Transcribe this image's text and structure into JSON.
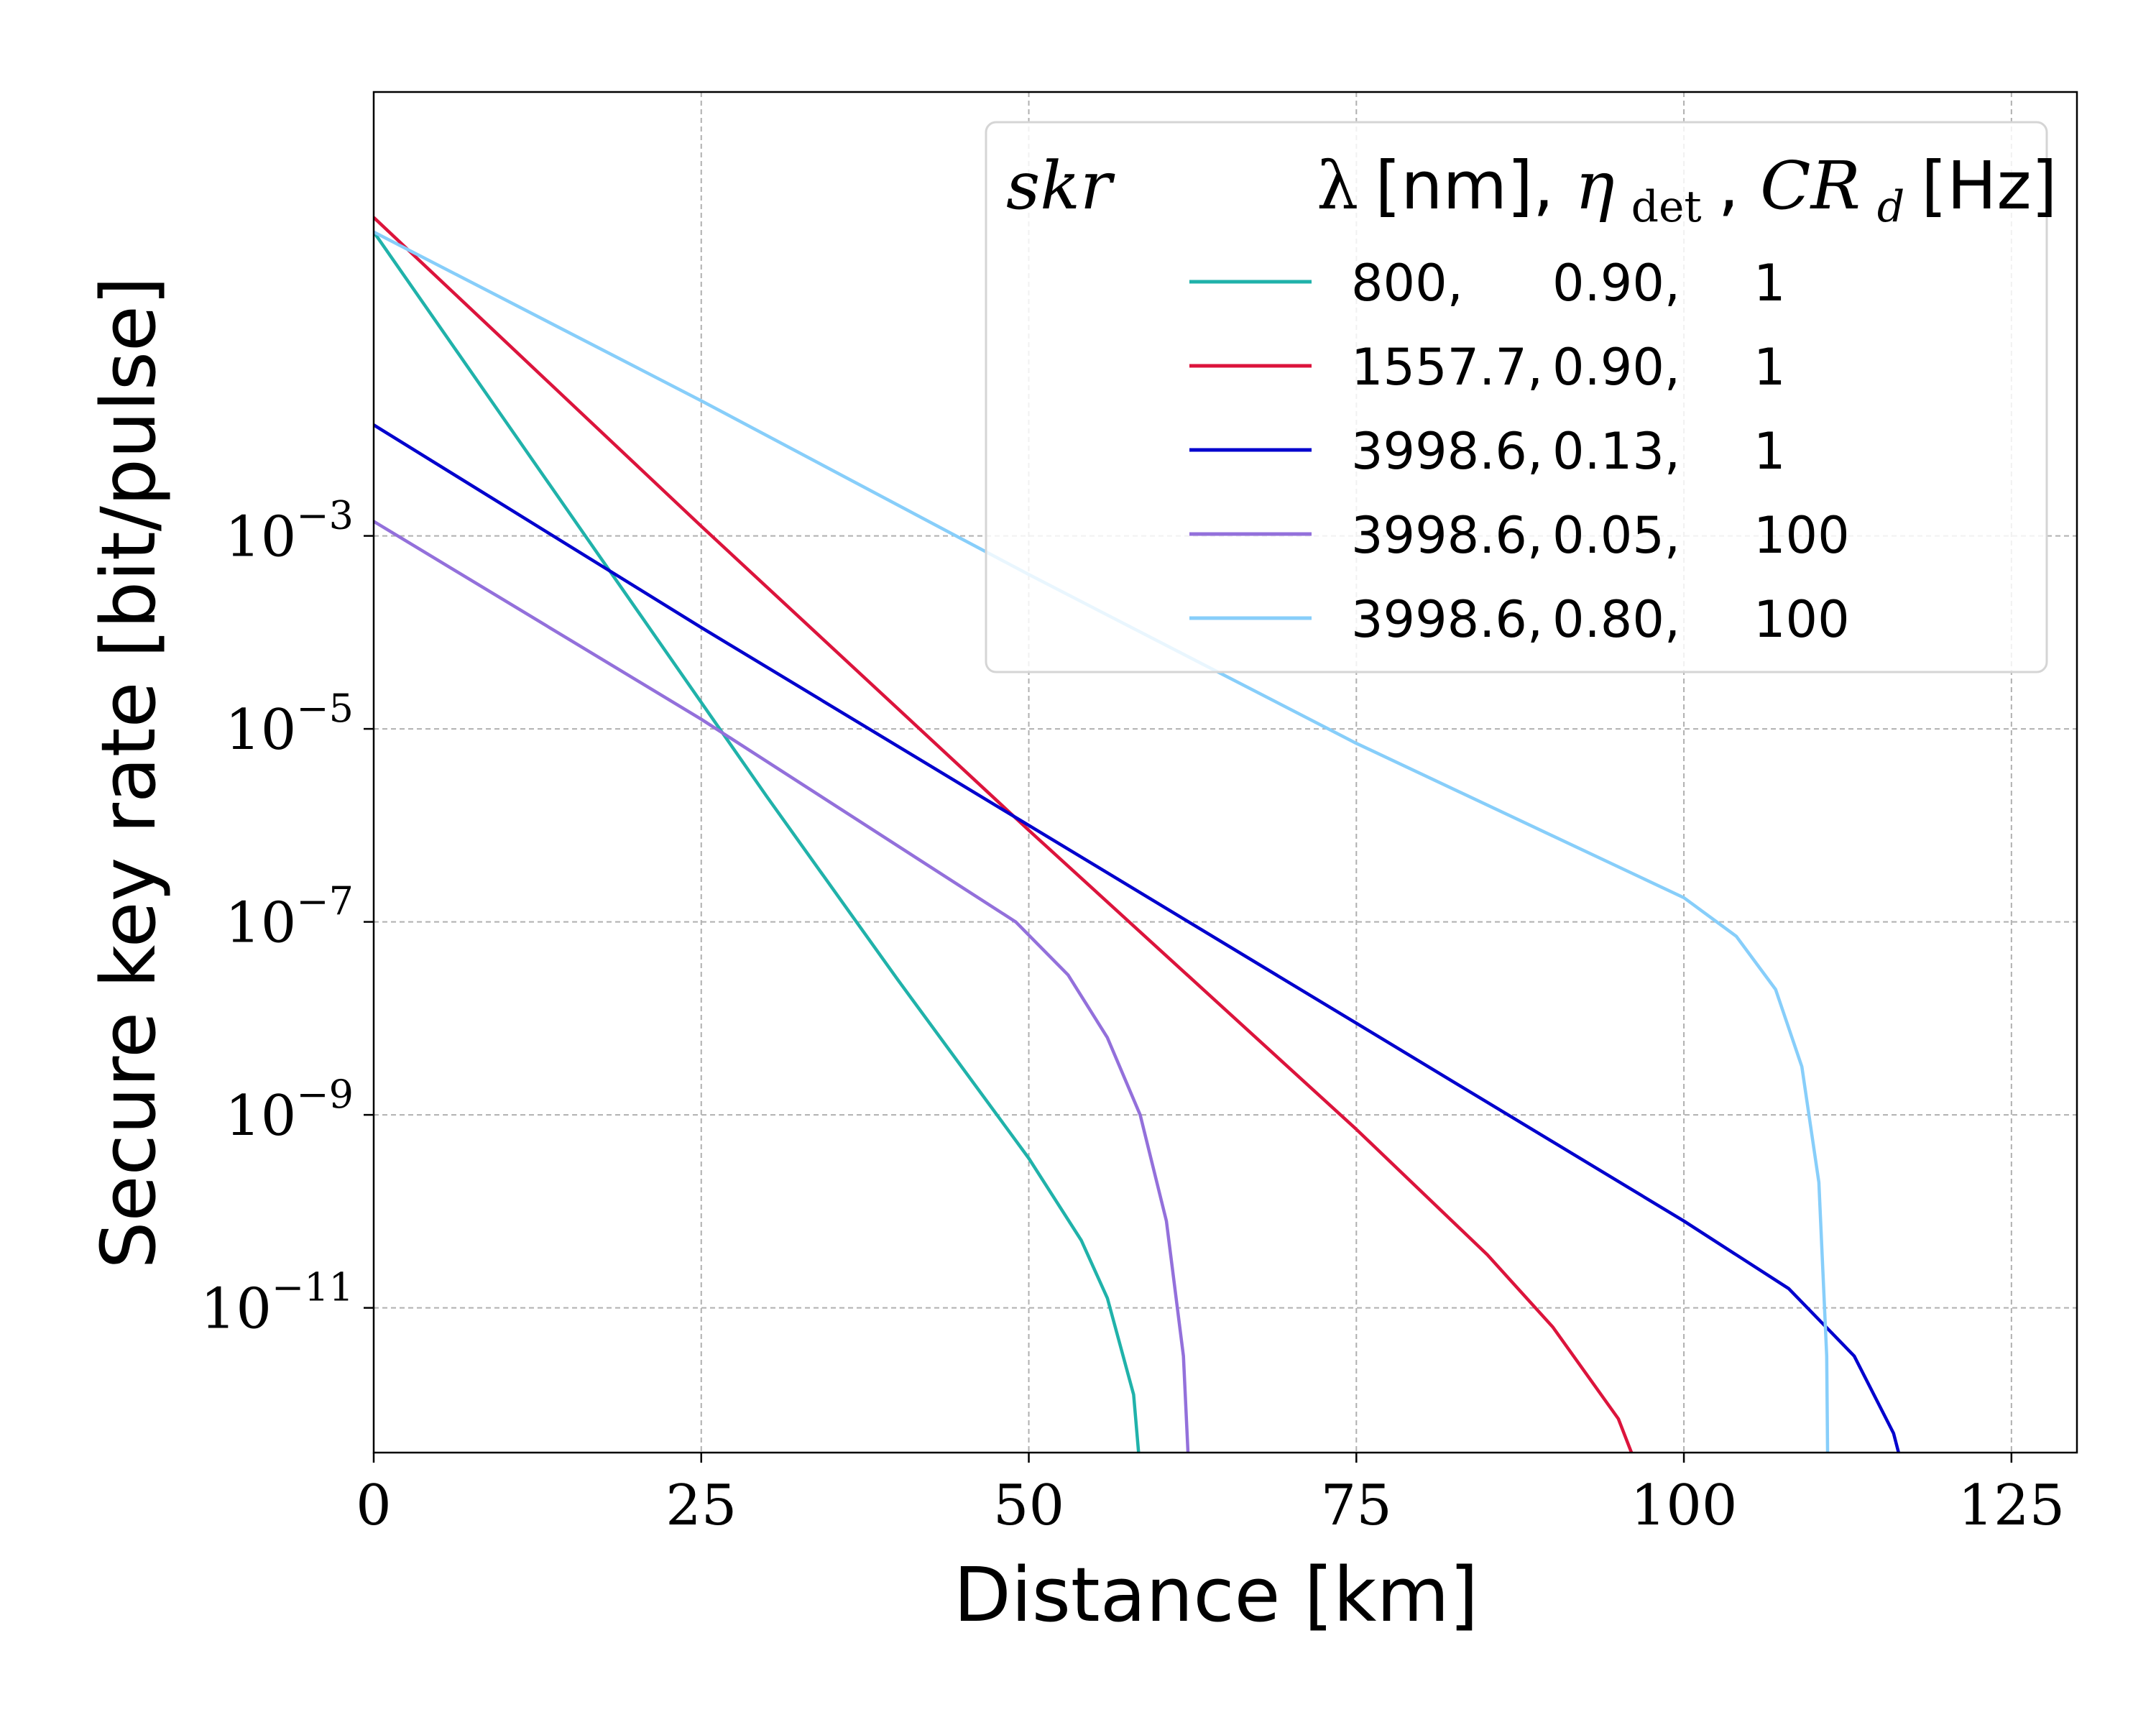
{
  "chart_data": {
    "type": "line",
    "xlabel": "Distance [km]",
    "ylabel": "Secure key rate [bit/pulse]",
    "xlim": [
      0,
      130
    ],
    "ylim_log10": [
      -12.5,
      1.6
    ],
    "yscale": "log",
    "grid": true,
    "x_ticks": [
      {
        "value": 0,
        "label": "0"
      },
      {
        "value": 25,
        "label": "25"
      },
      {
        "value": 50,
        "label": "50"
      },
      {
        "value": 75,
        "label": "75"
      },
      {
        "value": 100,
        "label": "100"
      },
      {
        "value": 125,
        "label": "125"
      }
    ],
    "y_ticks": [
      {
        "log10": -3,
        "base": "10",
        "exp": "−3"
      },
      {
        "log10": -5,
        "base": "10",
        "exp": "−5"
      },
      {
        "log10": -7,
        "base": "10",
        "exp": "−7"
      },
      {
        "log10": -9,
        "base": "10",
        "exp": "−9"
      },
      {
        "log10": -11,
        "base": "10",
        "exp": "−11"
      }
    ],
    "legend": {
      "placement": "top-right",
      "title_left": "skr",
      "title_parts": {
        "lambda": "λ",
        "nm": "[nm], ",
        "eta": "η",
        "eta_sub": "det",
        "comma": ", ",
        "cr": "CR",
        "cr_sub": "d",
        "hz": "[Hz]"
      }
    },
    "series": [
      {
        "name": "800, 0.90, 1",
        "label_cols": [
          "800,",
          "0.90,",
          "1"
        ],
        "color": "#20b2aa",
        "points": [
          [
            0,
            0.15
          ],
          [
            10,
            -1.8
          ],
          [
            20,
            -3.75
          ],
          [
            30,
            -5.7
          ],
          [
            40,
            -7.6
          ],
          [
            50,
            -9.45
          ],
          [
            54,
            -10.3
          ],
          [
            56,
            -10.9
          ],
          [
            58,
            -11.9
          ],
          [
            59.2,
            -13.8
          ],
          [
            59.4,
            -16
          ]
        ]
      },
      {
        "name": "1557.7, 0.90, 1",
        "label_cols": [
          "1557.7,",
          "0.90,",
          "1"
        ],
        "color": "#dc143c",
        "points": [
          [
            0,
            0.3
          ],
          [
            25,
            -2.9
          ],
          [
            50,
            -6.05
          ],
          [
            75,
            -9.15
          ],
          [
            85,
            -10.45
          ],
          [
            90,
            -11.2
          ],
          [
            95,
            -12.15
          ],
          [
            98,
            -13.2
          ],
          [
            99.2,
            -14.5
          ],
          [
            99.5,
            -16
          ]
        ]
      },
      {
        "name": "3998.6, 0.13, 1",
        "label_cols": [
          "3998.6,",
          "0.13,",
          "1"
        ],
        "color": "#0000cd",
        "points": [
          [
            0,
            -1.85
          ],
          [
            25,
            -3.95
          ],
          [
            50,
            -6.0
          ],
          [
            75,
            -8.05
          ],
          [
            100,
            -10.1
          ],
          [
            108,
            -10.8
          ],
          [
            113,
            -11.5
          ],
          [
            116,
            -12.3
          ],
          [
            118.5,
            -13.6
          ],
          [
            119.7,
            -15
          ],
          [
            120,
            -16
          ]
        ]
      },
      {
        "name": "3998.6, 0.05, 100",
        "label_cols": [
          "3998.6,",
          "0.05,",
          "100"
        ],
        "color": "#9370db",
        "points": [
          [
            0,
            -2.85
          ],
          [
            25,
            -4.9
          ],
          [
            49,
            -7.0
          ],
          [
            53,
            -7.55
          ],
          [
            56,
            -8.2
          ],
          [
            58.5,
            -9.0
          ],
          [
            60.5,
            -10.1
          ],
          [
            61.8,
            -11.5
          ],
          [
            62.5,
            -13.5
          ],
          [
            62.8,
            -16
          ]
        ]
      },
      {
        "name": "3998.6, 0.80, 100",
        "label_cols": [
          "3998.6,",
          "0.80,",
          "100"
        ],
        "color": "#87cefa",
        "points": [
          [
            0,
            0.15
          ],
          [
            25,
            -1.6
          ],
          [
            50,
            -3.4
          ],
          [
            75,
            -5.15
          ],
          [
            100,
            -6.75
          ],
          [
            104,
            -7.15
          ],
          [
            107,
            -7.7
          ],
          [
            109,
            -8.5
          ],
          [
            110.3,
            -9.7
          ],
          [
            110.9,
            -11.5
          ],
          [
            111.2,
            -16
          ]
        ]
      }
    ]
  }
}
